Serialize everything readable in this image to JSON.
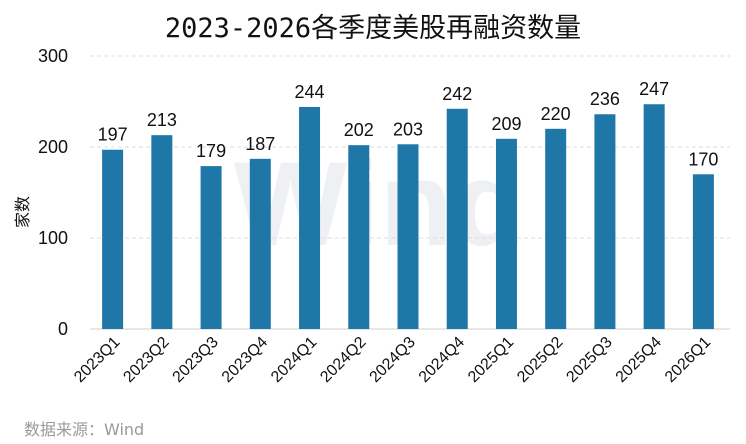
{
  "chart_data": {
    "type": "bar",
    "title": "2023-2026各季度美股再融资数量",
    "categories": [
      "2023Q1",
      "2023Q2",
      "2023Q3",
      "2023Q4",
      "2024Q1",
      "2024Q2",
      "2024Q3",
      "2024Q4",
      "2025Q1",
      "2025Q2",
      "2025Q3",
      "2025Q4",
      "2026Q1"
    ],
    "values": [
      197,
      213,
      179,
      187,
      244,
      202,
      203,
      242,
      209,
      220,
      236,
      247,
      170
    ],
    "xlabel": "",
    "ylabel": "家数",
    "ylim": [
      0,
      300
    ],
    "yticks": [
      0,
      100,
      200,
      300
    ],
    "grid": true,
    "bar_color": "#1f77a8",
    "grid_color": "#dddddd",
    "watermark": "Wind"
  },
  "source": "数据来源：Wind"
}
